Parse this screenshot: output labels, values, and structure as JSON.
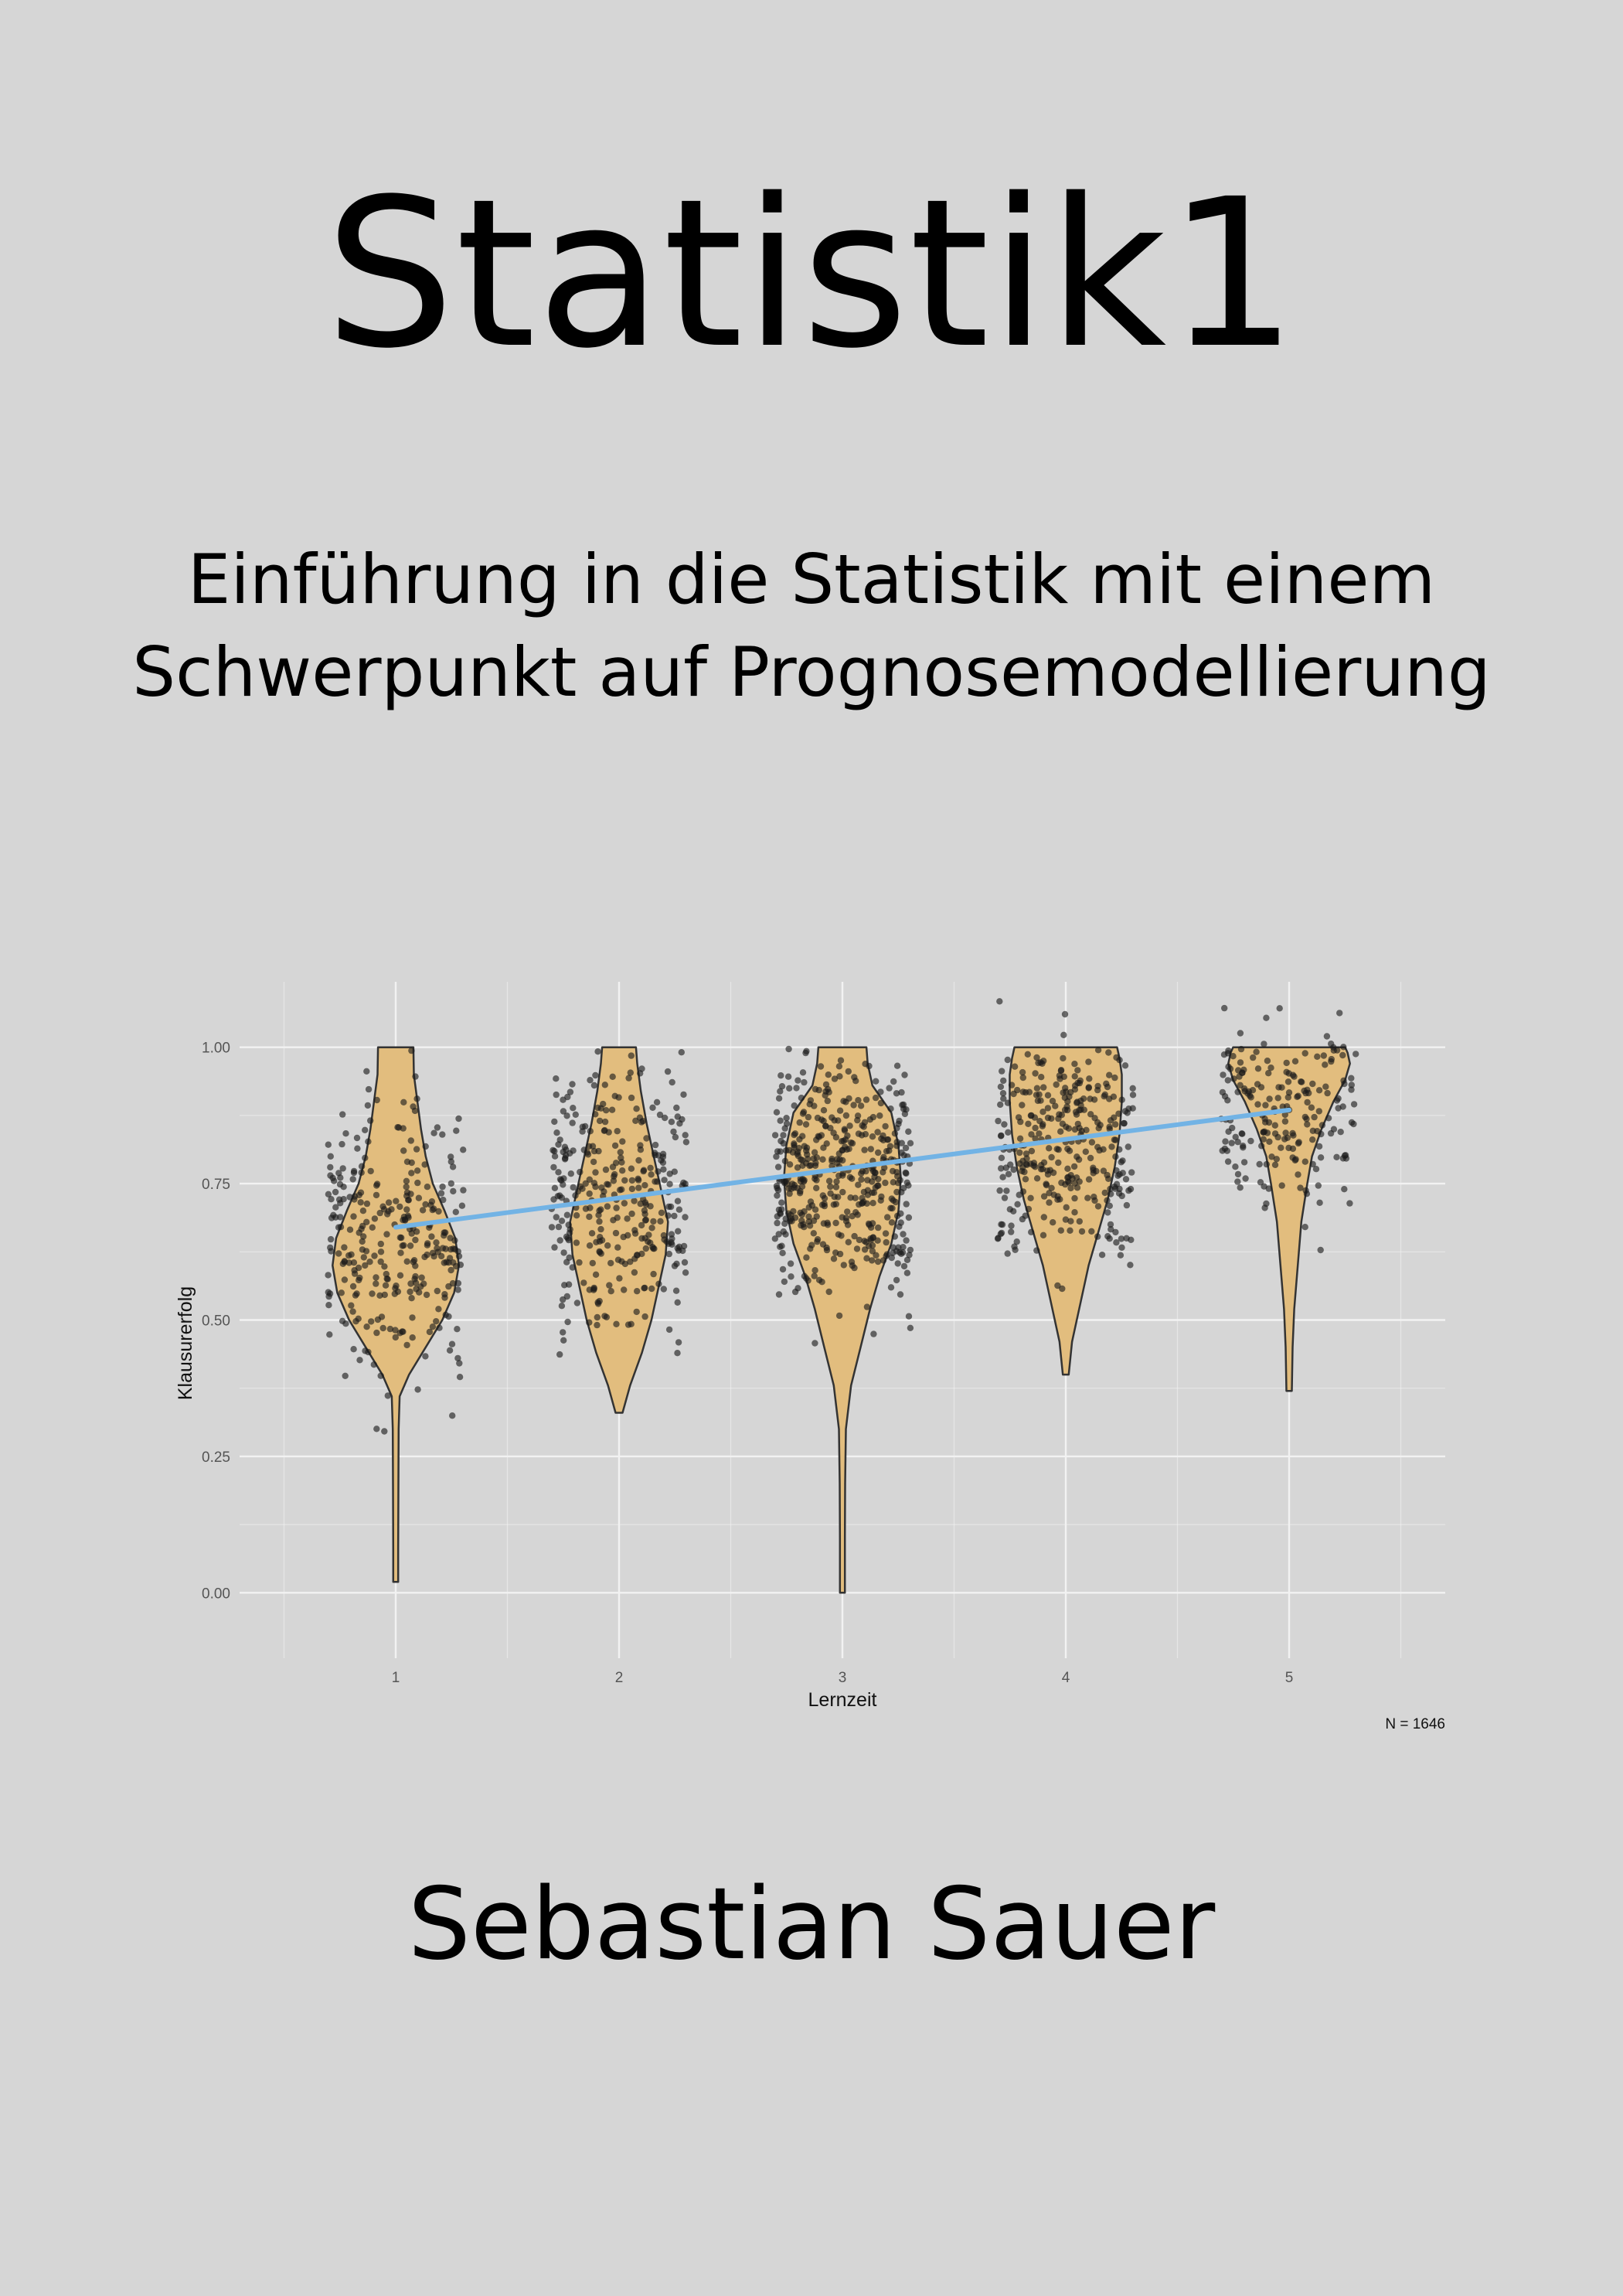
{
  "book": {
    "title": "Statistik1",
    "subtitle_line1": "Einführung in die Statistik mit einem",
    "subtitle_line2": "Schwerpunkt auf Prognosemodellierung",
    "author": "Sebastian Sauer"
  },
  "colors": {
    "background": "#d6d6d6",
    "violin_fill": "#e2bd7e",
    "violin_stroke": "#333333",
    "points": "#1a1a1a",
    "regression_line": "#72b3e5",
    "grid": "#f2f2f2"
  },
  "chart_data": {
    "type": "violin",
    "xlabel": "Lernzeit",
    "ylabel": "Klausurerfolg",
    "categories": [
      "1",
      "2",
      "3",
      "4",
      "5"
    ],
    "x_ticks": [
      "1",
      "2",
      "3",
      "4",
      "5"
    ],
    "y_ticks": [
      "0.00",
      "0.25",
      "0.50",
      "0.75",
      "1.00"
    ],
    "ylim": [
      -0.12,
      1.12
    ],
    "grid": true,
    "caption": "N = 1646",
    "n": 1646,
    "regression_line": {
      "x": [
        1,
        5
      ],
      "y": [
        0.67,
        0.885
      ]
    },
    "groups": [
      {
        "x": 1,
        "min": 0.02,
        "max": 1.0,
        "density": [
          [
            0.02,
            0.004
          ],
          [
            0.08,
            0.004
          ],
          [
            0.2,
            0.005
          ],
          [
            0.3,
            0.006
          ],
          [
            0.36,
            0.01
          ],
          [
            0.4,
            0.05
          ],
          [
            0.45,
            0.12
          ],
          [
            0.5,
            0.19
          ],
          [
            0.55,
            0.24
          ],
          [
            0.6,
            0.26
          ],
          [
            0.65,
            0.245
          ],
          [
            0.7,
            0.2
          ],
          [
            0.75,
            0.15
          ],
          [
            0.8,
            0.12
          ],
          [
            0.85,
            0.1
          ],
          [
            0.9,
            0.085
          ],
          [
            0.95,
            0.07
          ],
          [
            1.0,
            0.068
          ]
        ],
        "point_count": 300,
        "point_center": 0.64,
        "point_spread": 0.16
      },
      {
        "x": 2,
        "min": 0.33,
        "max": 1.0,
        "density": [
          [
            0.33,
            0.008
          ],
          [
            0.38,
            0.04
          ],
          [
            0.44,
            0.09
          ],
          [
            0.5,
            0.13
          ],
          [
            0.56,
            0.16
          ],
          [
            0.62,
            0.19
          ],
          [
            0.68,
            0.2
          ],
          [
            0.74,
            0.17
          ],
          [
            0.8,
            0.14
          ],
          [
            0.86,
            0.11
          ],
          [
            0.92,
            0.085
          ],
          [
            0.97,
            0.07
          ],
          [
            1.0,
            0.065
          ]
        ],
        "point_count": 330,
        "point_center": 0.73,
        "point_spread": 0.15
      },
      {
        "x": 3,
        "min": 0.0,
        "max": 1.0,
        "density": [
          [
            0.0,
            0.004
          ],
          [
            0.1,
            0.004
          ],
          [
            0.2,
            0.005
          ],
          [
            0.3,
            0.008
          ],
          [
            0.38,
            0.03
          ],
          [
            0.45,
            0.07
          ],
          [
            0.52,
            0.11
          ],
          [
            0.58,
            0.15
          ],
          [
            0.64,
            0.2
          ],
          [
            0.7,
            0.23
          ],
          [
            0.76,
            0.24
          ],
          [
            0.82,
            0.23
          ],
          [
            0.88,
            0.2
          ],
          [
            0.93,
            0.12
          ],
          [
            0.97,
            0.1
          ],
          [
            1.0,
            0.095
          ]
        ],
        "point_count": 460,
        "point_center": 0.76,
        "point_spread": 0.14
      },
      {
        "x": 4,
        "min": 0.4,
        "max": 1.0,
        "density": [
          [
            0.4,
            0.006
          ],
          [
            0.46,
            0.02
          ],
          [
            0.52,
            0.05
          ],
          [
            0.6,
            0.09
          ],
          [
            0.66,
            0.13
          ],
          [
            0.72,
            0.17
          ],
          [
            0.78,
            0.2
          ],
          [
            0.84,
            0.22
          ],
          [
            0.9,
            0.23
          ],
          [
            0.95,
            0.23
          ],
          [
            0.98,
            0.22
          ],
          [
            1.0,
            0.21
          ]
        ],
        "point_count": 330,
        "point_center": 0.82,
        "point_spread": 0.13
      },
      {
        "x": 5,
        "min": 0.37,
        "max": 1.0,
        "density": [
          [
            0.37,
            0.005
          ],
          [
            0.45,
            0.008
          ],
          [
            0.52,
            0.015
          ],
          [
            0.6,
            0.03
          ],
          [
            0.68,
            0.045
          ],
          [
            0.75,
            0.07
          ],
          [
            0.8,
            0.09
          ],
          [
            0.85,
            0.13
          ],
          [
            0.9,
            0.18
          ],
          [
            0.94,
            0.23
          ],
          [
            0.97,
            0.25
          ],
          [
            0.99,
            0.24
          ],
          [
            1.0,
            0.23
          ]
        ],
        "point_count": 200,
        "point_center": 0.88,
        "point_spread": 0.12
      }
    ]
  }
}
